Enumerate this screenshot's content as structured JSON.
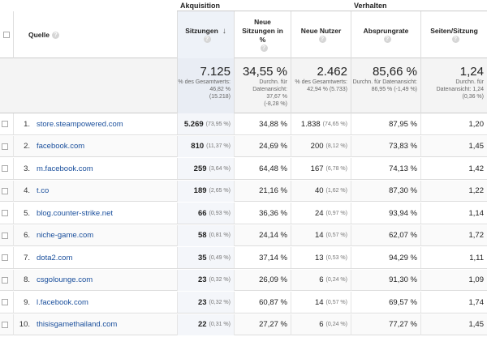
{
  "groups": {
    "acquisition": "Akquisition",
    "behavior": "Verhalten"
  },
  "headers": {
    "source": "Quelle",
    "sessions": "Sitzungen",
    "new_sessions": "Neue Sitzungen in %",
    "new_users": "Neue Nutzer",
    "bounce_rate": "Absprungrate",
    "pages_per_session": "Seiten/Sitzung"
  },
  "totals": {
    "sessions": {
      "value": "7.125",
      "sub1": "% des Gesamtwerts:",
      "sub2": "46,82 %",
      "sub3": "(15.218)"
    },
    "new_sessions": {
      "value": "34,55 %",
      "sub1": "Durchn. für Datenansicht:",
      "sub2": "37,67 %",
      "sub3": "(-8,28 %)"
    },
    "new_users": {
      "value": "2.462",
      "sub1": "% des Gesamtwerts:",
      "sub2": "42,94 % (5.733)",
      "sub3": ""
    },
    "bounce_rate": {
      "value": "85,66 %",
      "sub1": "Durchn. für Datenansicht:",
      "sub2": "86,95 % (-1,49 %)",
      "sub3": ""
    },
    "pages_per_session": {
      "value": "1,24",
      "sub1": "Durchn. für Datenansicht: 1,24",
      "sub2": "(0,36 %)",
      "sub3": ""
    }
  },
  "rows": [
    {
      "num": "1.",
      "source": "store.steampowered.com",
      "sessions": "5.269",
      "sessions_pct": "(73,95 %)",
      "new_sessions": "34,88 %",
      "new_users": "1.838",
      "new_users_pct": "(74,65 %)",
      "bounce": "87,95 %",
      "pages": "1,20"
    },
    {
      "num": "2.",
      "source": "facebook.com",
      "sessions": "810",
      "sessions_pct": "(11,37 %)",
      "new_sessions": "24,69 %",
      "new_users": "200",
      "new_users_pct": "(8,12 %)",
      "bounce": "73,83 %",
      "pages": "1,45"
    },
    {
      "num": "3.",
      "source": "m.facebook.com",
      "sessions": "259",
      "sessions_pct": "(3,64 %)",
      "new_sessions": "64,48 %",
      "new_users": "167",
      "new_users_pct": "(6,78 %)",
      "bounce": "74,13 %",
      "pages": "1,42"
    },
    {
      "num": "4.",
      "source": "t.co",
      "sessions": "189",
      "sessions_pct": "(2,65 %)",
      "new_sessions": "21,16 %",
      "new_users": "40",
      "new_users_pct": "(1,62 %)",
      "bounce": "87,30 %",
      "pages": "1,22"
    },
    {
      "num": "5.",
      "source": "blog.counter-strike.net",
      "sessions": "66",
      "sessions_pct": "(0,93 %)",
      "new_sessions": "36,36 %",
      "new_users": "24",
      "new_users_pct": "(0,97 %)",
      "bounce": "93,94 %",
      "pages": "1,14"
    },
    {
      "num": "6.",
      "source": "niche-game.com",
      "sessions": "58",
      "sessions_pct": "(0,81 %)",
      "new_sessions": "24,14 %",
      "new_users": "14",
      "new_users_pct": "(0,57 %)",
      "bounce": "62,07 %",
      "pages": "1,72"
    },
    {
      "num": "7.",
      "source": "dota2.com",
      "sessions": "35",
      "sessions_pct": "(0,49 %)",
      "new_sessions": "37,14 %",
      "new_users": "13",
      "new_users_pct": "(0,53 %)",
      "bounce": "94,29 %",
      "pages": "1,11"
    },
    {
      "num": "8.",
      "source": "csgolounge.com",
      "sessions": "23",
      "sessions_pct": "(0,32 %)",
      "new_sessions": "26,09 %",
      "new_users": "6",
      "new_users_pct": "(0,24 %)",
      "bounce": "91,30 %",
      "pages": "1,09"
    },
    {
      "num": "9.",
      "source": "l.facebook.com",
      "sessions": "23",
      "sessions_pct": "(0,32 %)",
      "new_sessions": "60,87 %",
      "new_users": "14",
      "new_users_pct": "(0,57 %)",
      "bounce": "69,57 %",
      "pages": "1,74"
    },
    {
      "num": "10.",
      "source": "thisisgamethailand.com",
      "sessions": "22",
      "sessions_pct": "(0,31 %)",
      "new_sessions": "27,27 %",
      "new_users": "6",
      "new_users_pct": "(0,24 %)",
      "bounce": "77,27 %",
      "pages": "1,45"
    }
  ],
  "icons": {
    "help": "help-icon",
    "sort": "sort-down-arrow-icon"
  },
  "help_glyph": "?",
  "sort_glyph": "↓"
}
